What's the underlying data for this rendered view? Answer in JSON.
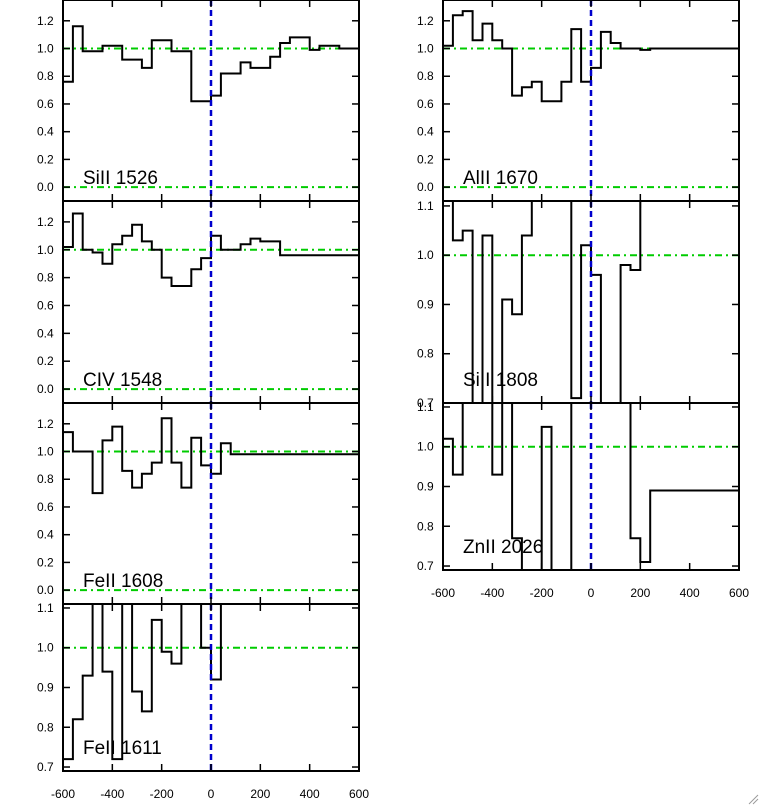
{
  "chart_data": [
    {
      "type": "line",
      "style": "histogram",
      "line_label": "SiII 1526",
      "ylim": [
        -0.1,
        1.35
      ],
      "yticks": [
        "0.0",
        "0.2",
        "0.4",
        "0.6",
        "0.8",
        "1.0",
        "1.2"
      ],
      "continuum": 1.0,
      "zero_level": 0.0,
      "x": [
        -600,
        -560,
        -520,
        -480,
        -440,
        -400,
        -360,
        -320,
        -280,
        -240,
        -200,
        -160,
        -120,
        -80,
        -40,
        0,
        40,
        80,
        120,
        160,
        200,
        240,
        280,
        320,
        360,
        400,
        440,
        480,
        520,
        560,
        600
      ],
      "y": [
        0.76,
        1.16,
        0.98,
        0.98,
        1.02,
        1.02,
        0.92,
        0.92,
        0.86,
        1.06,
        1.06,
        0.98,
        0.98,
        0.62,
        0.62,
        0.66,
        0.82,
        0.82,
        0.9,
        0.86,
        0.86,
        0.94,
        1.04,
        1.08,
        1.08,
        0.99,
        1.02,
        1.02,
        1.0,
        1.0,
        1.0
      ]
    },
    {
      "type": "line",
      "style": "histogram",
      "line_label": "AlII 1670",
      "ylim": [
        -0.1,
        1.35
      ],
      "yticks": [
        "0.0",
        "0.2",
        "0.4",
        "0.6",
        "0.8",
        "1.0",
        "1.2"
      ],
      "continuum": 1.0,
      "zero_level": 0.0,
      "x": [
        -600,
        -560,
        -520,
        -480,
        -440,
        -400,
        -360,
        -320,
        -280,
        -240,
        -200,
        -160,
        -120,
        -80,
        -40,
        0,
        40,
        80,
        120,
        160,
        200,
        240,
        280,
        320,
        360,
        400,
        440,
        480,
        520,
        560,
        600
      ],
      "y": [
        1.02,
        1.24,
        1.27,
        1.06,
        1.18,
        1.06,
        1.0,
        0.66,
        0.72,
        0.76,
        0.62,
        0.62,
        0.76,
        1.14,
        0.76,
        0.86,
        1.12,
        1.04,
        1.0,
        1.0,
        0.99,
        1.0,
        1.0,
        1.0,
        1.0,
        1.0,
        1.0,
        1.0,
        1.0,
        1.0,
        1.0
      ]
    },
    {
      "type": "line",
      "style": "histogram",
      "line_label": "CIV 1548",
      "ylim": [
        -0.1,
        1.35
      ],
      "yticks": [
        "0.0",
        "0.2",
        "0.4",
        "0.6",
        "0.8",
        "1.0",
        "1.2"
      ],
      "continuum": 1.0,
      "zero_level": 0.0,
      "x": [
        -600,
        -560,
        -520,
        -480,
        -440,
        -400,
        -360,
        -320,
        -280,
        -240,
        -200,
        -160,
        -120,
        -80,
        -40,
        0,
        40,
        80,
        120,
        160,
        200,
        240,
        280,
        320,
        360,
        400,
        440,
        480,
        520,
        560,
        600
      ],
      "y": [
        1.02,
        1.26,
        1.0,
        0.98,
        0.9,
        1.04,
        1.1,
        1.18,
        1.06,
        1.0,
        0.8,
        0.74,
        0.74,
        0.86,
        0.94,
        1.1,
        1.0,
        1.0,
        1.04,
        1.08,
        1.06,
        1.06,
        0.96,
        0.96,
        0.96,
        0.96,
        0.96,
        0.96,
        0.96,
        0.96,
        0.96
      ]
    },
    {
      "type": "line",
      "style": "histogram",
      "line_label": "SiII 1808",
      "ylim": [
        0.7,
        1.11
      ],
      "yticks": [
        "0.7",
        "0.8",
        "0.9",
        "1.0",
        "1.1"
      ],
      "continuum": 1.0,
      "x": [
        -600,
        -560,
        -520,
        -480,
        -440,
        -400,
        -360,
        -320,
        -280,
        -240,
        -200,
        -160,
        -120,
        -80,
        -40,
        0,
        40,
        80,
        120,
        160,
        200,
        240,
        280,
        320,
        360,
        400,
        440,
        480,
        520,
        560,
        600
      ],
      "y": [
        1.11,
        1.03,
        1.05,
        0.7,
        1.04,
        0.7,
        0.91,
        0.88,
        1.04,
        1.11,
        1.11,
        1.11,
        1.11,
        0.71,
        1.02,
        0.96,
        0.7,
        0.7,
        0.98,
        0.97,
        1.11,
        1.11,
        1.11,
        1.11,
        1.11,
        1.11,
        1.11,
        1.11,
        1.11,
        1.11,
        1.11
      ]
    },
    {
      "type": "line",
      "style": "histogram",
      "line_label": "FeII 1608",
      "ylim": [
        -0.1,
        1.35
      ],
      "yticks": [
        "0.0",
        "0.2",
        "0.4",
        "0.6",
        "0.8",
        "1.0",
        "1.2"
      ],
      "continuum": 1.0,
      "zero_level": 0.0,
      "x": [
        -600,
        -560,
        -520,
        -480,
        -440,
        -400,
        -360,
        -320,
        -280,
        -240,
        -200,
        -160,
        -120,
        -80,
        -40,
        0,
        40,
        80,
        120,
        160,
        200,
        240,
        280,
        320,
        360,
        400,
        440,
        480,
        520,
        560,
        600
      ],
      "y": [
        1.14,
        1.0,
        1.0,
        0.7,
        1.08,
        1.18,
        0.86,
        0.74,
        0.84,
        0.92,
        1.24,
        0.92,
        0.74,
        1.1,
        0.9,
        0.84,
        1.06,
        0.98,
        0.98,
        0.98,
        0.98,
        0.98,
        0.98,
        0.98,
        0.98,
        0.98,
        0.98,
        0.98,
        0.98,
        0.98,
        0.98
      ]
    },
    {
      "type": "line",
      "style": "histogram",
      "line_label": "ZnII 2026",
      "ylim": [
        0.69,
        1.11
      ],
      "yticks": [
        "0.7",
        "0.8",
        "0.9",
        "1.0",
        "1.1"
      ],
      "continuum": 1.0,
      "x": [
        -600,
        -560,
        -520,
        -480,
        -440,
        -400,
        -360,
        -320,
        -280,
        -240,
        -200,
        -160,
        -120,
        -80,
        -40,
        0,
        40,
        80,
        120,
        160,
        200,
        240,
        280,
        320,
        360,
        400,
        440,
        480,
        520,
        560,
        600
      ],
      "y": [
        1.02,
        0.93,
        1.11,
        1.11,
        1.11,
        0.93,
        1.11,
        0.77,
        0.69,
        0.69,
        1.05,
        0.69,
        0.69,
        1.11,
        1.11,
        1.11,
        1.11,
        1.11,
        1.11,
        0.77,
        0.71,
        0.89,
        0.89,
        0.89,
        0.89,
        0.89,
        0.89,
        0.89,
        0.89,
        0.89,
        0.89
      ]
    },
    {
      "type": "line",
      "style": "histogram",
      "line_label": "FeII 1611",
      "ylim": [
        0.69,
        1.11
      ],
      "yticks": [
        "0.7",
        "0.8",
        "0.9",
        "1.0",
        "1.1"
      ],
      "continuum": 1.0,
      "x": [
        -600,
        -560,
        -520,
        -480,
        -440,
        -400,
        -360,
        -320,
        -280,
        -240,
        -200,
        -160,
        -120,
        -80,
        -40,
        0,
        40,
        80,
        120,
        160,
        200,
        240,
        280,
        320,
        360,
        400,
        440,
        480,
        520,
        560,
        600
      ],
      "y": [
        0.72,
        0.82,
        0.93,
        1.11,
        0.94,
        0.72,
        1.11,
        0.89,
        0.84,
        1.07,
        0.99,
        0.96,
        1.11,
        1.11,
        1.0,
        0.92,
        1.11,
        1.11,
        1.11,
        1.11,
        1.11,
        1.11,
        1.11,
        1.11,
        1.11,
        1.11,
        1.11,
        1.11,
        1.11,
        1.11,
        1.11
      ]
    }
  ],
  "x_axis": {
    "xlim": [
      -600,
      600
    ],
    "tick_values": [
      -600,
      -400,
      -200,
      0,
      200,
      400,
      600
    ],
    "tick_labels": [
      "-600",
      "-400",
      "-200",
      "0",
      "200",
      "400",
      "600"
    ]
  },
  "colors": {
    "data_line": "#000000",
    "continuum_line": "#00cc00",
    "zero_velocity_line": "#0000cc",
    "frame": "#000000"
  }
}
